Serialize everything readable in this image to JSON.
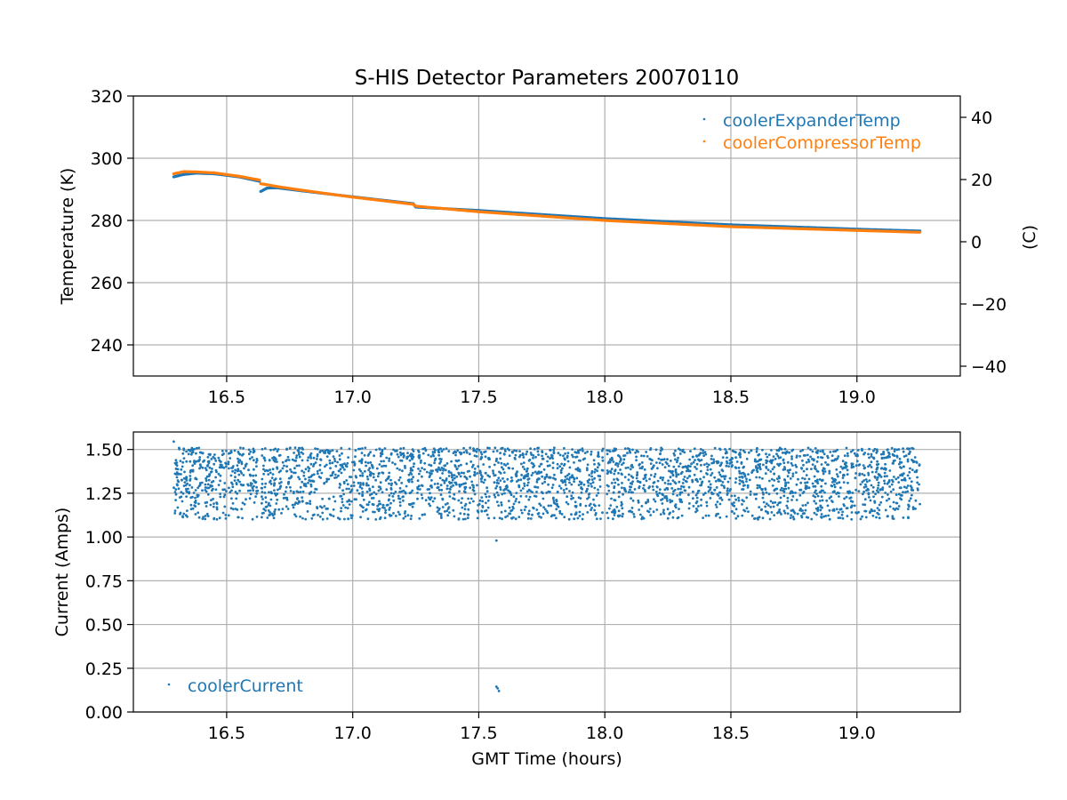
{
  "chart_data": [
    {
      "type": "scatter",
      "title": "S-HIS Detector Parameters 20070110",
      "xlabel": "",
      "ylabel": "Temperature (K)",
      "ylabel_right": "(C)",
      "xlim": [
        16.13,
        19.41
      ],
      "ylim": [
        230,
        320
      ],
      "ylim_right": [
        -43.15,
        46.85
      ],
      "xticks": [
        "16.5",
        "17.0",
        "17.5",
        "18.0",
        "18.5",
        "19.0"
      ],
      "yticks": [
        "240",
        "260",
        "280",
        "300",
        "320"
      ],
      "yticks_right": [
        "−40",
        "−20",
        "0",
        "20",
        "40"
      ],
      "grid": true,
      "legend_position": "top-right",
      "series": [
        {
          "name": "coolerExpanderTemp",
          "color": "#1f77b4",
          "x": [
            16.29,
            16.33,
            16.38,
            16.45,
            16.55,
            16.63,
            16.635,
            16.66,
            16.7,
            16.8,
            17.0,
            17.24,
            17.25,
            17.5,
            18.0,
            18.5,
            19.0,
            19.25
          ],
          "y": [
            294.0,
            294.8,
            295.2,
            295.0,
            294.0,
            292.6,
            289.3,
            290.4,
            290.5,
            289.5,
            287.6,
            285.4,
            284.3,
            283.2,
            280.6,
            278.6,
            277.2,
            276.6
          ]
        },
        {
          "name": "coolerCompressorTemp",
          "color": "#ff7f0e",
          "x": [
            16.29,
            16.33,
            16.38,
            16.45,
            16.55,
            16.63,
            16.635,
            16.66,
            16.7,
            16.8,
            17.0,
            17.24,
            17.25,
            17.5,
            18.0,
            18.5,
            19.0,
            19.25
          ],
          "y": [
            295.0,
            295.7,
            295.6,
            295.3,
            294.2,
            293.0,
            291.8,
            291.5,
            290.9,
            289.7,
            287.5,
            285.2,
            284.6,
            282.8,
            280.0,
            278.0,
            276.8,
            276.2
          ]
        }
      ]
    },
    {
      "type": "scatter",
      "title": "",
      "xlabel": "GMT Time (hours)",
      "ylabel": "Current (Amps)",
      "xlim": [
        16.13,
        19.41
      ],
      "ylim": [
        0.0,
        1.6
      ],
      "xticks": [
        "16.5",
        "17.0",
        "17.5",
        "18.0",
        "18.5",
        "19.0"
      ],
      "yticks": [
        "0.00",
        "0.25",
        "0.50",
        "0.75",
        "1.00",
        "1.25",
        "1.50"
      ],
      "grid": true,
      "legend_position": "lower-left",
      "series": [
        {
          "name": "coolerCurrent",
          "color": "#1f77b4",
          "x_range": [
            16.29,
            19.25
          ],
          "band_y_range": [
            1.1,
            1.51
          ],
          "dense_y_range": [
            1.25,
            1.51
          ],
          "gaps_x": [
            16.63,
            17.25,
            17.55,
            18.0
          ],
          "outliers_x": [
            16.29,
            17.57,
            17.57,
            17.575,
            17.58
          ],
          "outliers_y": [
            1.545,
            0.98,
            0.145,
            0.135,
            0.12
          ]
        }
      ]
    }
  ]
}
